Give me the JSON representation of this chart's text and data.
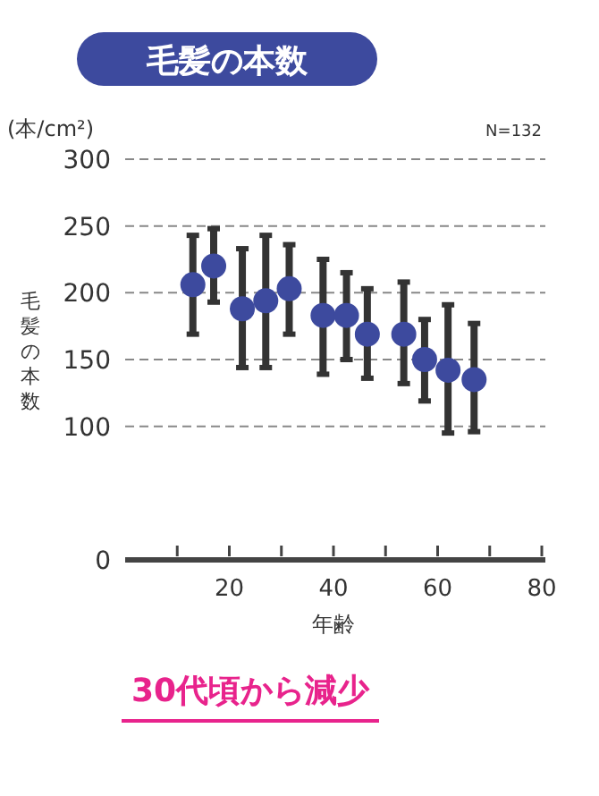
{
  "chart_data": {
    "type": "scatter",
    "title": "毛髪の本数",
    "xlabel": "年齢",
    "ylabel": "毛髪の本数",
    "annotations": [
      "(本/cm²)",
      "N=132",
      "30代頃から減少"
    ],
    "x": [
      13,
      17,
      22.5,
      27,
      31.5,
      38,
      42.5,
      46.5,
      53.5,
      57.5,
      62,
      67
    ],
    "series": [
      {
        "color": "#3d4a9e",
        "values": [
          206,
          220,
          188,
          194,
          203,
          183,
          183,
          169,
          169,
          150,
          142,
          135
        ],
        "errors": [
          [
            169,
            243
          ],
          [
            193,
            248
          ],
          [
            144,
            233
          ],
          [
            144,
            243
          ],
          [
            169,
            236
          ],
          [
            139,
            225
          ],
          [
            150,
            215
          ],
          [
            136,
            203
          ],
          [
            132,
            208
          ],
          [
            119,
            180
          ],
          [
            95,
            191
          ],
          [
            96,
            177
          ]
        ]
      }
    ],
    "xlim": [
      0,
      80
    ],
    "xticks": [
      {
        "value": 10,
        "label": null
      },
      20,
      {
        "value": 30,
        "label": null
      },
      40,
      {
        "value": 50,
        "label": null
      },
      60,
      {
        "value": 70,
        "label": null
      },
      80
    ],
    "ylim": [
      0,
      300
    ],
    "yticks": [
      0,
      100,
      150,
      200,
      250,
      300
    ],
    "grid": "y",
    "marker": "circle"
  }
}
